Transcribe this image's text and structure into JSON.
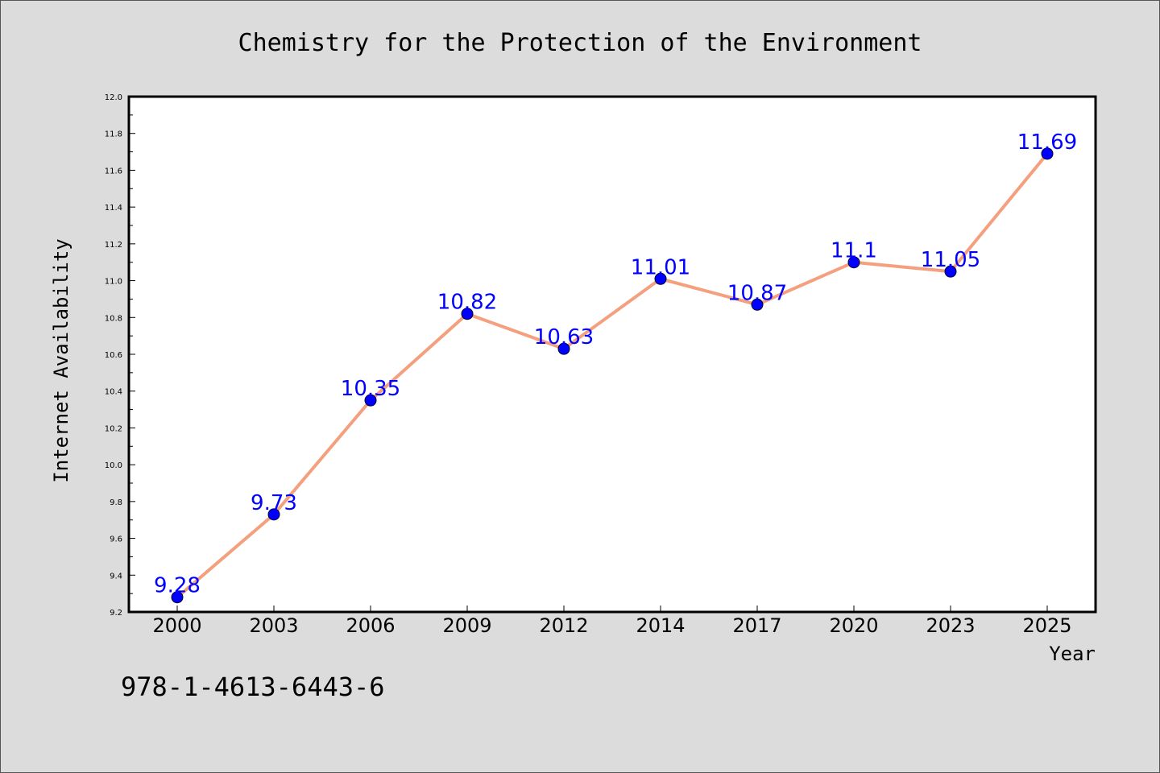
{
  "chart_data": {
    "type": "line",
    "title": "Chemistry for the Protection of the Environment",
    "xlabel": "Year",
    "ylabel": "Internet Availability",
    "categories": [
      "2000",
      "2003",
      "2006",
      "2009",
      "2012",
      "2014",
      "2017",
      "2020",
      "2023",
      "2025"
    ],
    "series": [
      {
        "values": [
          9.28,
          9.73,
          10.35,
          10.82,
          10.63,
          11.01,
          10.87,
          11.1,
          11.05,
          11.69
        ],
        "labels": [
          "9.28",
          "9.73",
          "10.35",
          "10.82",
          "10.63",
          "11.01",
          "10.87",
          "11.1",
          "11.05",
          "11.69"
        ]
      }
    ],
    "ylim": [
      9.2,
      12.0
    ],
    "yticks": [
      "9.2",
      "9.4",
      "9.6",
      "9.8",
      "10.0",
      "10.2",
      "10.4",
      "10.6",
      "10.8",
      "11.0",
      "11.2",
      "11.4",
      "11.6",
      "11.8",
      "12.0"
    ],
    "grid": false,
    "colors": {
      "line": "#f4a07f",
      "marker": "#0000ff",
      "label": "#0000ff",
      "plot_background": "#ffffff",
      "figure_background": "#dcdcdc"
    }
  },
  "annotation": {
    "isbn": "978-1-4613-6443-6"
  }
}
